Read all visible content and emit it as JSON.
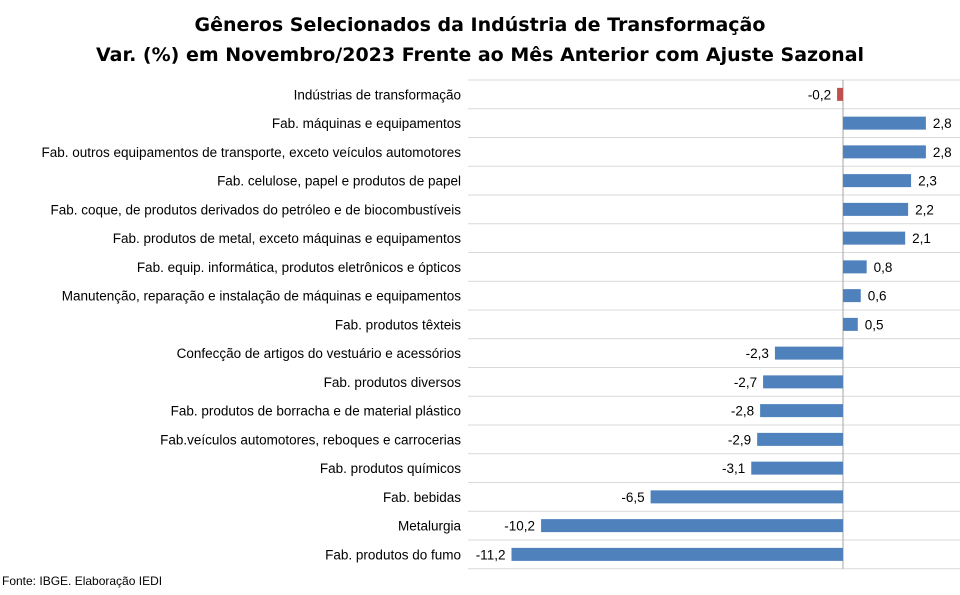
{
  "chart_data": {
    "type": "bar",
    "orientation": "horizontal",
    "title": "Gêneros Selecionados da Indústria de Transformação",
    "subtitle": "Var. (%) em Novembro/2023 Frente ao Mês Anterior com Ajuste Sazonal",
    "categories": [
      "Indústrias de transformação",
      "Fab. máquinas e equipamentos",
      "Fab. outros equipamentos de transporte, exceto veículos automotores",
      "Fab. celulose, papel e produtos de papel",
      "Fab. coque, de produtos derivados do petróleo e de biocombustíveis",
      "Fab. produtos de metal, exceto máquinas e equipamentos",
      "Fab. equip. informática, produtos eletrônicos e ópticos",
      "Manutenção, reparação e instalação de máquinas e equipamentos",
      "Fab. produtos têxteis",
      "Confecção de artigos do vestuário e acessórios",
      "Fab. produtos diversos",
      "Fab. produtos de borracha e de material plástico",
      "Fab.veículos automotores, reboques e carrocerias",
      "Fab. produtos químicos",
      "Fab. bebidas",
      "Metalurgia",
      "Fab. produtos do fumo"
    ],
    "values": [
      -0.2,
      2.8,
      2.8,
      2.3,
      2.2,
      2.1,
      0.8,
      0.6,
      0.5,
      -2.3,
      -2.7,
      -2.8,
      -2.9,
      -3.1,
      -6.5,
      -10.2,
      -11.2
    ],
    "value_labels": [
      "-0,2",
      "2,8",
      "2,8",
      "2,3",
      "2,2",
      "2,1",
      "0,8",
      "0,6",
      "0,5",
      "-2,3",
      "-2,7",
      "-2,8",
      "-2,9",
      "-3,1",
      "-6,5",
      "-10,2",
      "-11,2"
    ],
    "highlight_index": 0,
    "colors": {
      "bar": "#4F81BD",
      "highlight": "#C0504D",
      "grid": "#D9D9D9",
      "axis": "#A6A6A6"
    },
    "grid": "horizontal",
    "legend": "none"
  },
  "footer": {
    "source": "Fonte: IBGE. Elaboração IEDI"
  }
}
